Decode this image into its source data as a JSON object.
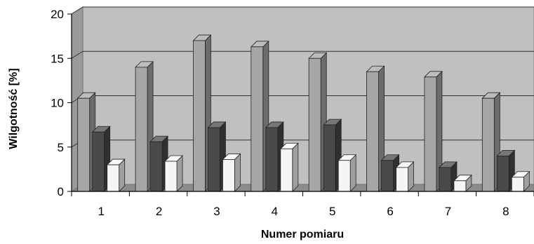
{
  "chart_data": {
    "type": "bar",
    "title": "",
    "xlabel": "Numer pomiaru",
    "ylabel": "Wilgotność [%]",
    "categories": [
      "1",
      "2",
      "3",
      "4",
      "5",
      "6",
      "7",
      "8"
    ],
    "ylim": [
      0,
      20
    ],
    "yticks": [
      "0",
      "5",
      "10",
      "15",
      "20"
    ],
    "grid": true,
    "legend": "none",
    "series": [
      {
        "values": [
          10.5,
          14.0,
          17.0,
          16.3,
          15.0,
          13.5,
          12.9,
          10.5
        ],
        "color": "#a6a6a6"
      },
      {
        "values": [
          6.7,
          5.6,
          7.2,
          7.2,
          7.5,
          3.5,
          2.7,
          4.0
        ],
        "color": "#4a4a4a"
      },
      {
        "values": [
          3.0,
          3.4,
          3.6,
          4.8,
          3.5,
          2.7,
          1.2,
          1.6
        ],
        "color": "#f5f5f5"
      }
    ]
  }
}
